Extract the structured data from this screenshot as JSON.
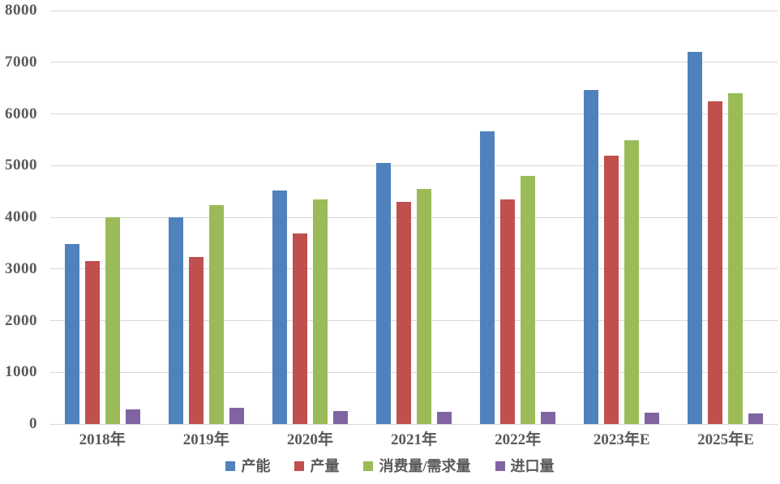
{
  "chart_data": {
    "type": "bar",
    "title": "",
    "categories": [
      "2018年",
      "2019年",
      "2020年",
      "2021年",
      "2022年",
      "2023年E",
      "2025年E"
    ],
    "series": [
      {
        "key": "capacity",
        "name": "产能",
        "color": "#4F81BD",
        "values": [
          3480,
          4000,
          4520,
          5050,
          5670,
          6460,
          7200
        ]
      },
      {
        "key": "production",
        "name": "产量",
        "color": "#C0504D",
        "values": [
          3150,
          3230,
          3690,
          4300,
          4340,
          5190,
          6250
        ]
      },
      {
        "key": "consumption-demand",
        "name": "消费量/需求量",
        "color": "#9BBB59",
        "values": [
          4000,
          4230,
          4350,
          4550,
          4800,
          5490,
          6400
        ]
      },
      {
        "key": "imports",
        "name": "进口量",
        "color": "#8064A2",
        "values": [
          280,
          320,
          250,
          240,
          230,
          220,
          210
        ]
      }
    ],
    "xlabel": "",
    "ylabel": "",
    "ylim": [
      0,
      8000
    ],
    "ytick_step": 1000,
    "grid": true,
    "legend_position": "bottom",
    "gridline_color": "#D9D9D9",
    "axis_text_color": "#595959",
    "background_color": "#FFFFFF"
  }
}
